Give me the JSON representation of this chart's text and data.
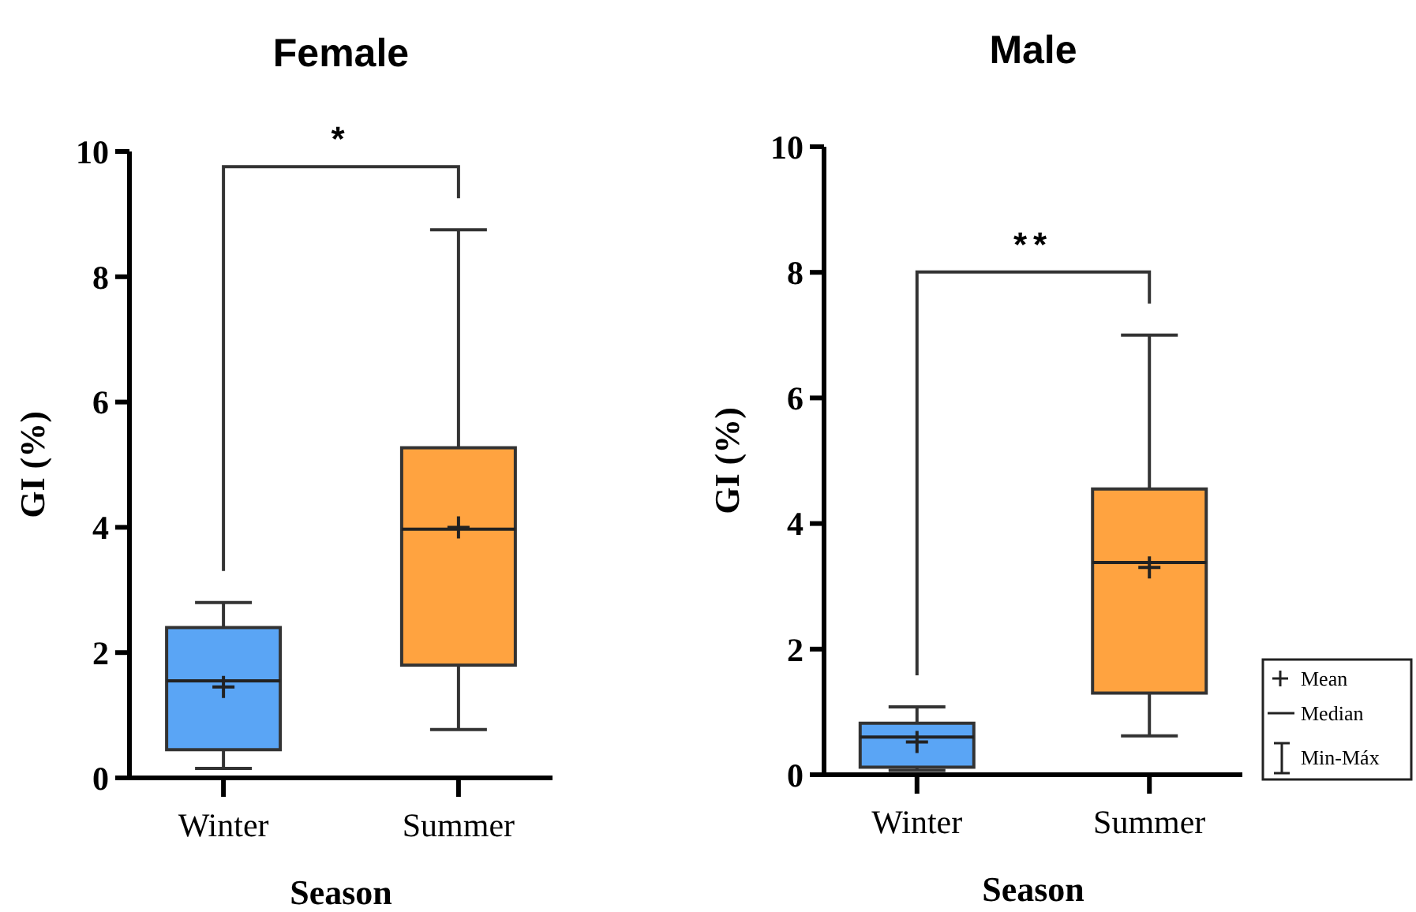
{
  "chart_data": [
    {
      "type": "box",
      "title": "Female",
      "xlabel": "Season",
      "ylabel": "GI (%)",
      "categories": [
        "Winter",
        "Summer"
      ],
      "colors": [
        "#5aa5f5",
        "#ffa340"
      ],
      "ylim": [
        0,
        10
      ],
      "yticks": [
        0,
        2,
        4,
        6,
        8,
        10
      ],
      "boxes": [
        {
          "low": 0.15,
          "q1": 0.45,
          "median": 1.55,
          "q3": 2.4,
          "high": 2.8,
          "mean": 1.45
        },
        {
          "low": 0.77,
          "q1": 1.8,
          "median": 3.97,
          "q3": 5.27,
          "high": 8.75,
          "mean": 4.0
        }
      ],
      "annotations": [
        "*"
      ]
    },
    {
      "type": "box",
      "title": "Male",
      "xlabel": "Season",
      "ylabel": "GI (%)",
      "categories": [
        "Winter",
        "Summer"
      ],
      "colors": [
        "#5aa5f5",
        "#ffa340"
      ],
      "ylim": [
        0,
        10
      ],
      "yticks": [
        0,
        2,
        4,
        6,
        8,
        10
      ],
      "boxes": [
        {
          "low": 0.07,
          "q1": 0.12,
          "median": 0.6,
          "q3": 0.82,
          "high": 1.08,
          "mean": 0.52
        },
        {
          "low": 0.62,
          "q1": 1.3,
          "median": 3.38,
          "q3": 4.55,
          "high": 7.0,
          "mean": 3.3
        }
      ],
      "annotations": [
        "**"
      ]
    },
    {
      "type": "other",
      "annotations": [
        "Mean",
        "Median",
        "Min-Máx"
      ]
    }
  ]
}
